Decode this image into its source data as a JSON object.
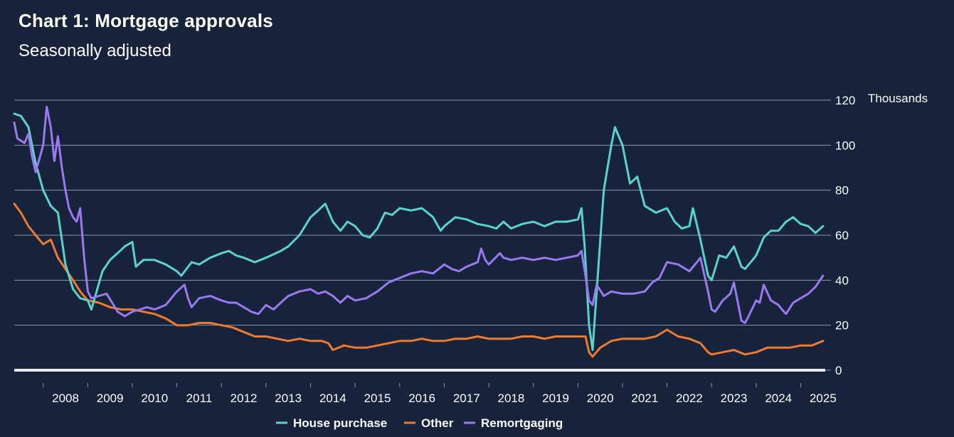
{
  "header": {
    "title": "Chart 1: Mortgage approvals",
    "subtitle": "Seasonally adjusted"
  },
  "colors": {
    "background": "#16233b",
    "gridline": "#8896ad",
    "zero_line": "#e8e8ea",
    "house_purchase": "#5ad3cb",
    "other": "#ee7a30",
    "remortgaging": "#9a78f0"
  },
  "chart_data": {
    "type": "line",
    "title": "Chart 1: Mortgage approvals",
    "subtitle": "Seasonally adjusted",
    "ylabel": "Thousands",
    "ylim": [
      0,
      120
    ],
    "xlim": [
      2007.35,
      2025.55
    ],
    "y_axis_side": "right",
    "y_ticks": [
      0,
      20,
      40,
      60,
      80,
      100,
      120
    ],
    "x_ticks": [
      "2008",
      "2009",
      "2010",
      "2011",
      "2012",
      "2013",
      "2014",
      "2015",
      "2016",
      "2017",
      "2018",
      "2019",
      "2020",
      "2021",
      "2022",
      "2023",
      "2024",
      "2025"
    ],
    "grid": true,
    "legend_position": "bottom",
    "series": [
      {
        "name": "House purchase",
        "points": [
          [
            2007.35,
            114
          ],
          [
            2007.5,
            113
          ],
          [
            2007.67,
            108
          ],
          [
            2007.83,
            92
          ],
          [
            2008.0,
            80
          ],
          [
            2008.17,
            73
          ],
          [
            2008.33,
            70
          ],
          [
            2008.5,
            47
          ],
          [
            2008.67,
            36
          ],
          [
            2008.83,
            32
          ],
          [
            2009.0,
            31
          ],
          [
            2009.08,
            27
          ],
          [
            2009.17,
            33
          ],
          [
            2009.33,
            44
          ],
          [
            2009.5,
            49
          ],
          [
            2009.67,
            52
          ],
          [
            2009.83,
            55
          ],
          [
            2010.0,
            57
          ],
          [
            2010.08,
            46
          ],
          [
            2010.25,
            49
          ],
          [
            2010.5,
            49
          ],
          [
            2010.75,
            47
          ],
          [
            2011.0,
            44
          ],
          [
            2011.1,
            42
          ],
          [
            2011.33,
            48
          ],
          [
            2011.5,
            47
          ],
          [
            2011.75,
            50
          ],
          [
            2012.0,
            52
          ],
          [
            2012.17,
            53
          ],
          [
            2012.33,
            51
          ],
          [
            2012.5,
            50
          ],
          [
            2012.75,
            48
          ],
          [
            2013.0,
            50
          ],
          [
            2013.33,
            53
          ],
          [
            2013.5,
            55
          ],
          [
            2013.75,
            60
          ],
          [
            2014.0,
            68
          ],
          [
            2014.17,
            71
          ],
          [
            2014.33,
            74
          ],
          [
            2014.5,
            66
          ],
          [
            2014.67,
            62
          ],
          [
            2014.83,
            66
          ],
          [
            2015.0,
            64
          ],
          [
            2015.17,
            60
          ],
          [
            2015.33,
            59
          ],
          [
            2015.5,
            63
          ],
          [
            2015.67,
            70
          ],
          [
            2015.83,
            69
          ],
          [
            2016.0,
            72
          ],
          [
            2016.25,
            71
          ],
          [
            2016.5,
            72
          ],
          [
            2016.75,
            68
          ],
          [
            2016.92,
            62
          ],
          [
            2017.0,
            64
          ],
          [
            2017.25,
            68
          ],
          [
            2017.5,
            67
          ],
          [
            2017.75,
            65
          ],
          [
            2018.0,
            64
          ],
          [
            2018.17,
            63
          ],
          [
            2018.33,
            66
          ],
          [
            2018.5,
            63
          ],
          [
            2018.75,
            65
          ],
          [
            2019.0,
            66
          ],
          [
            2019.25,
            64
          ],
          [
            2019.5,
            66
          ],
          [
            2019.75,
            66
          ],
          [
            2020.0,
            67
          ],
          [
            2020.08,
            72
          ],
          [
            2020.15,
            55
          ],
          [
            2020.25,
            20
          ],
          [
            2020.33,
            9
          ],
          [
            2020.42,
            35
          ],
          [
            2020.58,
            80
          ],
          [
            2020.75,
            100
          ],
          [
            2020.83,
            108
          ],
          [
            2021.0,
            100
          ],
          [
            2021.17,
            83
          ],
          [
            2021.33,
            86
          ],
          [
            2021.5,
            73
          ],
          [
            2021.75,
            70
          ],
          [
            2022.0,
            72
          ],
          [
            2022.17,
            66
          ],
          [
            2022.33,
            63
          ],
          [
            2022.5,
            64
          ],
          [
            2022.58,
            72
          ],
          [
            2022.75,
            58
          ],
          [
            2022.92,
            42
          ],
          [
            2023.0,
            40
          ],
          [
            2023.17,
            51
          ],
          [
            2023.33,
            50
          ],
          [
            2023.5,
            55
          ],
          [
            2023.67,
            46
          ],
          [
            2023.75,
            45
          ],
          [
            2023.92,
            49
          ],
          [
            2024.0,
            51
          ],
          [
            2024.17,
            59
          ],
          [
            2024.33,
            62
          ],
          [
            2024.5,
            62
          ],
          [
            2024.67,
            66
          ],
          [
            2024.83,
            68
          ],
          [
            2025.0,
            65
          ],
          [
            2025.17,
            64
          ],
          [
            2025.33,
            61
          ],
          [
            2025.5,
            64
          ]
        ]
      },
      {
        "name": "Other",
        "points": [
          [
            2007.35,
            74
          ],
          [
            2007.5,
            70
          ],
          [
            2007.67,
            64
          ],
          [
            2007.83,
            60
          ],
          [
            2008.0,
            56
          ],
          [
            2008.17,
            58
          ],
          [
            2008.33,
            50
          ],
          [
            2008.5,
            45
          ],
          [
            2008.67,
            40
          ],
          [
            2008.83,
            35
          ],
          [
            2009.0,
            31
          ],
          [
            2009.25,
            30
          ],
          [
            2009.5,
            28
          ],
          [
            2009.75,
            27
          ],
          [
            2010.0,
            27
          ],
          [
            2010.25,
            26
          ],
          [
            2010.5,
            25
          ],
          [
            2010.75,
            23
          ],
          [
            2011.0,
            20
          ],
          [
            2011.25,
            20
          ],
          [
            2011.5,
            21
          ],
          [
            2011.75,
            21
          ],
          [
            2012.0,
            20
          ],
          [
            2012.25,
            19
          ],
          [
            2012.5,
            17
          ],
          [
            2012.75,
            15
          ],
          [
            2013.0,
            15
          ],
          [
            2013.25,
            14
          ],
          [
            2013.5,
            13
          ],
          [
            2013.75,
            14
          ],
          [
            2014.0,
            13
          ],
          [
            2014.25,
            13
          ],
          [
            2014.4,
            12
          ],
          [
            2014.5,
            9
          ],
          [
            2014.75,
            11
          ],
          [
            2015.0,
            10
          ],
          [
            2015.25,
            10
          ],
          [
            2015.5,
            11
          ],
          [
            2015.75,
            12
          ],
          [
            2016.0,
            13
          ],
          [
            2016.25,
            13
          ],
          [
            2016.5,
            14
          ],
          [
            2016.75,
            13
          ],
          [
            2017.0,
            13
          ],
          [
            2017.25,
            14
          ],
          [
            2017.5,
            14
          ],
          [
            2017.75,
            15
          ],
          [
            2018.0,
            14
          ],
          [
            2018.25,
            14
          ],
          [
            2018.5,
            14
          ],
          [
            2018.75,
            15
          ],
          [
            2019.0,
            15
          ],
          [
            2019.25,
            14
          ],
          [
            2019.5,
            15
          ],
          [
            2019.75,
            15
          ],
          [
            2020.0,
            15
          ],
          [
            2020.17,
            15
          ],
          [
            2020.25,
            8
          ],
          [
            2020.33,
            6
          ],
          [
            2020.5,
            10
          ],
          [
            2020.75,
            13
          ],
          [
            2021.0,
            14
          ],
          [
            2021.25,
            14
          ],
          [
            2021.5,
            14
          ],
          [
            2021.75,
            15
          ],
          [
            2022.0,
            18
          ],
          [
            2022.25,
            15
          ],
          [
            2022.5,
            14
          ],
          [
            2022.75,
            12
          ],
          [
            2022.92,
            8
          ],
          [
            2023.0,
            7
          ],
          [
            2023.25,
            8
          ],
          [
            2023.5,
            9
          ],
          [
            2023.75,
            7
          ],
          [
            2024.0,
            8
          ],
          [
            2024.25,
            10
          ],
          [
            2024.5,
            10
          ],
          [
            2024.75,
            10
          ],
          [
            2025.0,
            11
          ],
          [
            2025.25,
            11
          ],
          [
            2025.5,
            13
          ]
        ]
      },
      {
        "name": "Remortgaging",
        "points": [
          [
            2007.35,
            110
          ],
          [
            2007.42,
            103
          ],
          [
            2007.58,
            101
          ],
          [
            2007.67,
            105
          ],
          [
            2007.75,
            95
          ],
          [
            2007.83,
            88
          ],
          [
            2008.0,
            100
          ],
          [
            2008.08,
            117
          ],
          [
            2008.17,
            108
          ],
          [
            2008.25,
            93
          ],
          [
            2008.33,
            104
          ],
          [
            2008.42,
            90
          ],
          [
            2008.5,
            80
          ],
          [
            2008.58,
            72
          ],
          [
            2008.67,
            68
          ],
          [
            2008.75,
            66
          ],
          [
            2008.83,
            72
          ],
          [
            2008.92,
            50
          ],
          [
            2009.0,
            35
          ],
          [
            2009.08,
            32
          ],
          [
            2009.25,
            33
          ],
          [
            2009.42,
            34
          ],
          [
            2009.58,
            29
          ],
          [
            2009.67,
            26
          ],
          [
            2009.83,
            24
          ],
          [
            2010.0,
            26
          ],
          [
            2010.17,
            27
          ],
          [
            2010.33,
            28
          ],
          [
            2010.5,
            27
          ],
          [
            2010.75,
            29
          ],
          [
            2011.0,
            35
          ],
          [
            2011.17,
            38
          ],
          [
            2011.25,
            32
          ],
          [
            2011.33,
            28
          ],
          [
            2011.5,
            32
          ],
          [
            2011.75,
            33
          ],
          [
            2012.0,
            31
          ],
          [
            2012.17,
            30
          ],
          [
            2012.33,
            30
          ],
          [
            2012.5,
            28
          ],
          [
            2012.67,
            26
          ],
          [
            2012.83,
            25
          ],
          [
            2013.0,
            29
          ],
          [
            2013.17,
            27
          ],
          [
            2013.33,
            30
          ],
          [
            2013.5,
            33
          ],
          [
            2013.75,
            35
          ],
          [
            2014.0,
            36
          ],
          [
            2014.17,
            34
          ],
          [
            2014.33,
            35
          ],
          [
            2014.5,
            33
          ],
          [
            2014.67,
            30
          ],
          [
            2014.83,
            33
          ],
          [
            2015.0,
            31
          ],
          [
            2015.25,
            32
          ],
          [
            2015.5,
            35
          ],
          [
            2015.75,
            39
          ],
          [
            2016.0,
            41
          ],
          [
            2016.25,
            43
          ],
          [
            2016.5,
            44
          ],
          [
            2016.75,
            43
          ],
          [
            2017.0,
            47
          ],
          [
            2017.17,
            45
          ],
          [
            2017.33,
            44
          ],
          [
            2017.5,
            46
          ],
          [
            2017.75,
            48
          ],
          [
            2017.83,
            54
          ],
          [
            2017.92,
            49
          ],
          [
            2018.0,
            47
          ],
          [
            2018.25,
            52
          ],
          [
            2018.33,
            50
          ],
          [
            2018.5,
            49
          ],
          [
            2018.75,
            50
          ],
          [
            2019.0,
            49
          ],
          [
            2019.25,
            50
          ],
          [
            2019.5,
            49
          ],
          [
            2019.75,
            50
          ],
          [
            2020.0,
            51
          ],
          [
            2020.08,
            53
          ],
          [
            2020.17,
            42
          ],
          [
            2020.25,
            31
          ],
          [
            2020.33,
            29
          ],
          [
            2020.42,
            38
          ],
          [
            2020.58,
            33
          ],
          [
            2020.75,
            35
          ],
          [
            2021.0,
            34
          ],
          [
            2021.25,
            34
          ],
          [
            2021.5,
            35
          ],
          [
            2021.67,
            39
          ],
          [
            2021.83,
            41
          ],
          [
            2022.0,
            48
          ],
          [
            2022.25,
            47
          ],
          [
            2022.5,
            44
          ],
          [
            2022.67,
            48
          ],
          [
            2022.75,
            50
          ],
          [
            2022.92,
            35
          ],
          [
            2023.0,
            27
          ],
          [
            2023.08,
            26
          ],
          [
            2023.25,
            31
          ],
          [
            2023.42,
            34
          ],
          [
            2023.5,
            39
          ],
          [
            2023.67,
            22
          ],
          [
            2023.75,
            21
          ],
          [
            2023.83,
            24
          ],
          [
            2024.0,
            31
          ],
          [
            2024.08,
            30
          ],
          [
            2024.17,
            38
          ],
          [
            2024.33,
            31
          ],
          [
            2024.5,
            29
          ],
          [
            2024.58,
            27
          ],
          [
            2024.67,
            25
          ],
          [
            2024.83,
            30
          ],
          [
            2025.0,
            32
          ],
          [
            2025.17,
            34
          ],
          [
            2025.33,
            37
          ],
          [
            2025.5,
            42
          ]
        ]
      }
    ]
  }
}
